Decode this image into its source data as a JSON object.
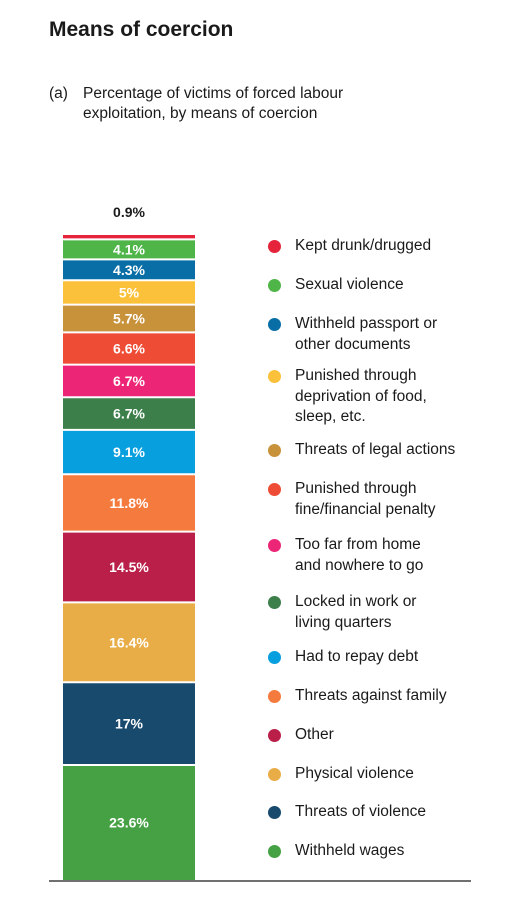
{
  "heading": "Means of coercion",
  "subtitle": {
    "tag": "(a)",
    "line1": "Percentage of victims of forced labour",
    "line2": "exploitation, by means of coercion"
  },
  "chart_data": {
    "type": "bar",
    "stacked": true,
    "title": "Percentage of victims of forced labour exploitation, by means of coercion",
    "xlabel": "",
    "ylabel": "",
    "unit": "%",
    "ylim": [
      0,
      100
    ],
    "legend_position": "right",
    "series": [
      {
        "name": "Kept drunk/drugged",
        "value": 0.9,
        "label": "0.9%",
        "color": "#e5243b"
      },
      {
        "name": "Sexual violence",
        "value": 4.1,
        "label": "4.1%",
        "color": "#4fb548"
      },
      {
        "name": "Withheld passport or\nother documents",
        "value": 4.3,
        "label": "4.3%",
        "color": "#0a6ea6"
      },
      {
        "name": "Punished through\ndeprivation of food,\nsleep, etc.",
        "value": 5,
        "label": "5%",
        "color": "#fcc13a"
      },
      {
        "name": "Threats of legal actions",
        "value": 5.7,
        "label": "5.7%",
        "color": "#c8923b"
      },
      {
        "name": "Punished through\nfine/financial penalty",
        "value": 6.6,
        "label": "6.6%",
        "color": "#ee4c35"
      },
      {
        "name": "Too far from home\nand nowhere to go",
        "value": 6.7,
        "label": "6.7%",
        "color": "#ec2576"
      },
      {
        "name": "Locked in work or\nliving quarters",
        "value": 6.7,
        "label": "6.7%",
        "color": "#3c7f4a"
      },
      {
        "name": "Had to repay debt",
        "value": 9.1,
        "label": "9.1%",
        "color": "#089fdf"
      },
      {
        "name": "Threats against family",
        "value": 11.8,
        "label": "11.8%",
        "color": "#f57a3e"
      },
      {
        "name": "Other",
        "value": 14.5,
        "label": "14.5%",
        "color": "#b91f48"
      },
      {
        "name": "Physical violence",
        "value": 16.4,
        "label": "16.4%",
        "color": "#e9ad47"
      },
      {
        "name": "Threats of violence",
        "value": 17,
        "label": "17%",
        "color": "#184a6e"
      },
      {
        "name": "Withheld wages",
        "value": 23.6,
        "label": "23.6%",
        "color": "#46a144"
      }
    ]
  }
}
